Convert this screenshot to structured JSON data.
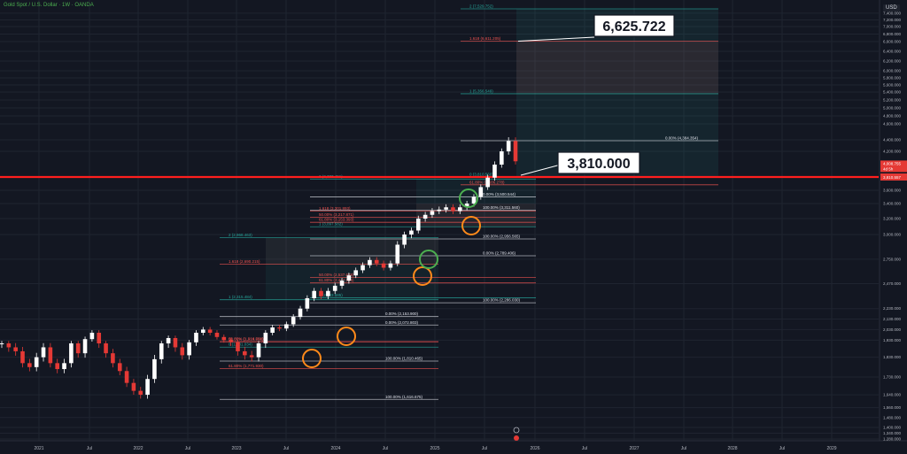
{
  "header": {
    "symbol_title": "Gold Spot / U.S. Dollar · 1W · OANDA",
    "currency": "USD"
  },
  "callouts": {
    "target_price": "6,625.722",
    "current_level": "3,810.000"
  },
  "price_badges": {
    "last_price": "4,008.755",
    "countdown": "4d 5h",
    "line_price": "3,810.557"
  },
  "colors": {
    "background": "#131722",
    "grid": "#1f2430",
    "candle_up": "#ffffff",
    "candle_down": "#e53935",
    "fib_green": "#26a69a",
    "fib_red": "#ef5350",
    "support_line": "#ff1e1e",
    "circle_orange": "#ff8a1a",
    "circle_green": "#4caf50",
    "axis_text": "#b2b5be"
  },
  "chart_data": {
    "type": "line",
    "instrument": "Gold Spot / U.S. Dollar",
    "interval": "1W",
    "y_axis_ticks": [
      "7,400.000",
      "7,200.000",
      "7,000.000",
      "6,800.000",
      "6,600.000",
      "6,400.000",
      "6,200.000",
      "6,000.000",
      "5,800.000",
      "5,600.000",
      "5,400.000",
      "5,200.000",
      "5,000.000",
      "4,800.000",
      "4,600.000",
      "4,400.000",
      "4,200.000",
      "3,600.000",
      "3,400.000",
      "3,200.000",
      "3,000.000",
      "2,750.000",
      "2,470.000",
      "2,230.000",
      "2,130.000",
      "2,030.000",
      "1,930.000",
      "1,830.000",
      "1,730.000",
      "1,640.000",
      "1,560.000",
      "1,480.000",
      "1,400.000",
      "1,340.000",
      "1,280.000"
    ],
    "x_axis_ticks": [
      "2021",
      "Jul",
      "2022",
      "Jul",
      "2023",
      "Jul",
      "2024",
      "Jul",
      "2025",
      "Jul",
      "2026",
      "Jul",
      "2027",
      "Jul",
      "2028",
      "Jul",
      "2029"
    ],
    "series": [
      {
        "values": [
          1900,
          1880,
          1860,
          1800,
          1780,
          1830,
          1880,
          1800,
          1770,
          1800,
          1900,
          1850,
          1940,
          2000,
          1900,
          1850,
          1800,
          1760,
          1700,
          1660,
          1640,
          1720,
          1820,
          1900,
          1950,
          1880,
          1840,
          1910,
          2000,
          2030,
          2000,
          1960,
          1930,
          1910,
          1860,
          1840,
          1830,
          1900,
          2000,
          2050,
          2040,
          2080,
          2150,
          2230,
          2330,
          2400,
          2350,
          2400,
          2450,
          2500,
          2560,
          2620,
          2680,
          2740,
          2700,
          2650,
          2700,
          2900,
          3000,
          3050,
          3200,
          3250,
          3300,
          3320,
          3350,
          3300,
          3350,
          3400,
          3500,
          3650,
          3800,
          4000,
          4200,
          4380,
          4050
        ]
      }
    ],
    "fib_extensions": [
      {
        "group": "A",
        "levels": [
          {
            "label": "1 (2,315.484)"
          },
          {
            "label": "1.618 (2,690.215)"
          },
          {
            "label": "2 (2,968.463)"
          },
          {
            "label": "0 (1,881.034)"
          },
          {
            "label": "50.00% (1,914.731)"
          },
          {
            "label": "61.80% (1,916.668)"
          },
          {
            "label": "0.00% (2,072.803)"
          },
          {
            "label": "0.00% (2,153.900)"
          },
          {
            "label": "100.00% (1,810.465)"
          },
          {
            "label": "100.00% (1,616.675)"
          },
          {
            "label": "61.80% (1,771.930)"
          }
        ]
      },
      {
        "group": "B",
        "levels": [
          {
            "label": "0 (2,333.585)"
          },
          {
            "label": "1 (3,097.582)"
          },
          {
            "label": "1.618 (3,301.893)"
          },
          {
            "label": "2 (3,777.451)"
          },
          {
            "label": "0.00% (2,789.406)"
          },
          {
            "label": "100.00% (2,286.030)"
          },
          {
            "label": "50.00% (2,537.688)"
          },
          {
            "label": "61.80% (2,477.136)"
          },
          {
            "label": "100.00% (2,956.565)"
          },
          {
            "label": "0.00% (3,500.544)"
          },
          {
            "label": "50.00% (3,217.871)"
          },
          {
            "label": "61.80% (3,153.393)"
          },
          {
            "label": "100.00% (3,311.560)"
          }
        ]
      },
      {
        "group": "C",
        "levels": [
          {
            "label": "0 (3,810.560)"
          },
          {
            "label": "61.80% (3,686.278)"
          },
          {
            "label": "0.00% (4,384.354)"
          },
          {
            "label": "1 (5,356.549)"
          },
          {
            "label": "1.618 (6,611.205)"
          },
          {
            "label": "2 (7,529.752)"
          }
        ]
      }
    ]
  }
}
